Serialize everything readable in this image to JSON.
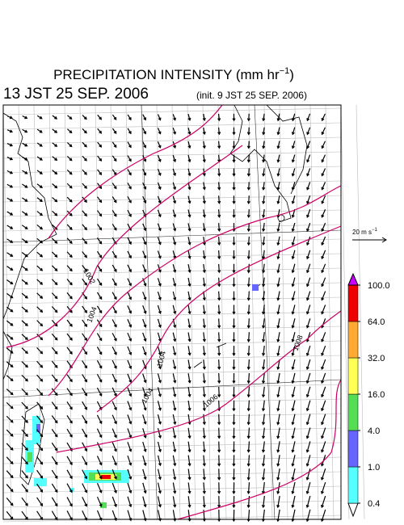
{
  "header": {
    "title": "PRECIPITATION INTENSITY (mm hr",
    "title_sup": "−1",
    "title_end": ")",
    "valid_time": "13 JST 25 SEP. 2006",
    "init_time": "(init. 9 JST 25 SEP. 2006)"
  },
  "reference_vector": {
    "label": "20 m s",
    "label_sup": "−1"
  },
  "isobar_labels": [
    "1002",
    "1004",
    "1004",
    "1004",
    "1006",
    "1008"
  ],
  "colorbar": {
    "levels": [
      {
        "value": 0.4,
        "label": "0.4"
      },
      {
        "value": 1,
        "label": "1.0"
      },
      {
        "value": 4,
        "label": "4.0"
      },
      {
        "value": 16,
        "label": "16.0"
      },
      {
        "value": 32,
        "label": "32.0"
      },
      {
        "value": 64,
        "label": "64.0"
      },
      {
        "value": 100,
        "label": "100.0"
      }
    ],
    "colors": [
      "#ffffff",
      "#55ffff",
      "#6666ff",
      "#55dd55",
      "#ffff55",
      "#ffaa33",
      "#ee0000",
      "#cc00ff"
    ]
  }
}
